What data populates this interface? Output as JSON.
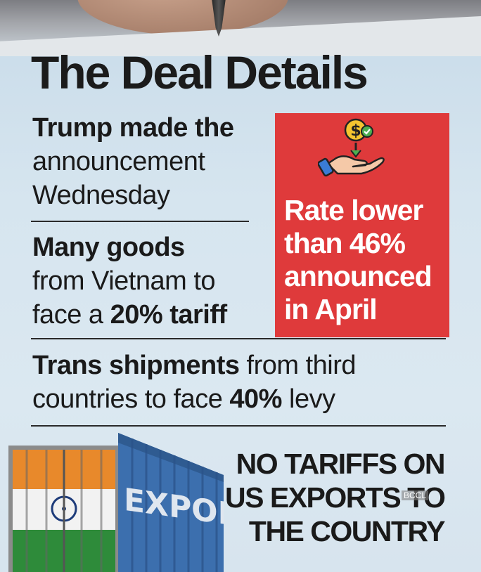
{
  "title": "The Deal Details",
  "point1": {
    "bold": "Trump made the",
    "line2": "announcement",
    "line3": "Wednesday"
  },
  "point2": {
    "bold": "Many goods",
    "line2": "from Vietnam to",
    "line3_pre": "face a ",
    "line3_bold": "20% tariff"
  },
  "callout": {
    "lines": [
      "Rate lower",
      "than 46%",
      "announced",
      "in April"
    ],
    "bg_color": "#df3a3b",
    "icon": "hand-dollar-icon"
  },
  "point3": {
    "bold": "Trans shipments",
    "rest1": " from third",
    "line2_pre": "countries to face ",
    "line2_bold": "40%",
    "line2_post": " levy"
  },
  "container": {
    "label": "EXPORT",
    "icon": "shipping-container-icon"
  },
  "headline": {
    "lines": [
      "NO TARIFFS ON",
      "US EXPORTS TO",
      "THE COUNTRY"
    ]
  },
  "watermark": "BCCL"
}
